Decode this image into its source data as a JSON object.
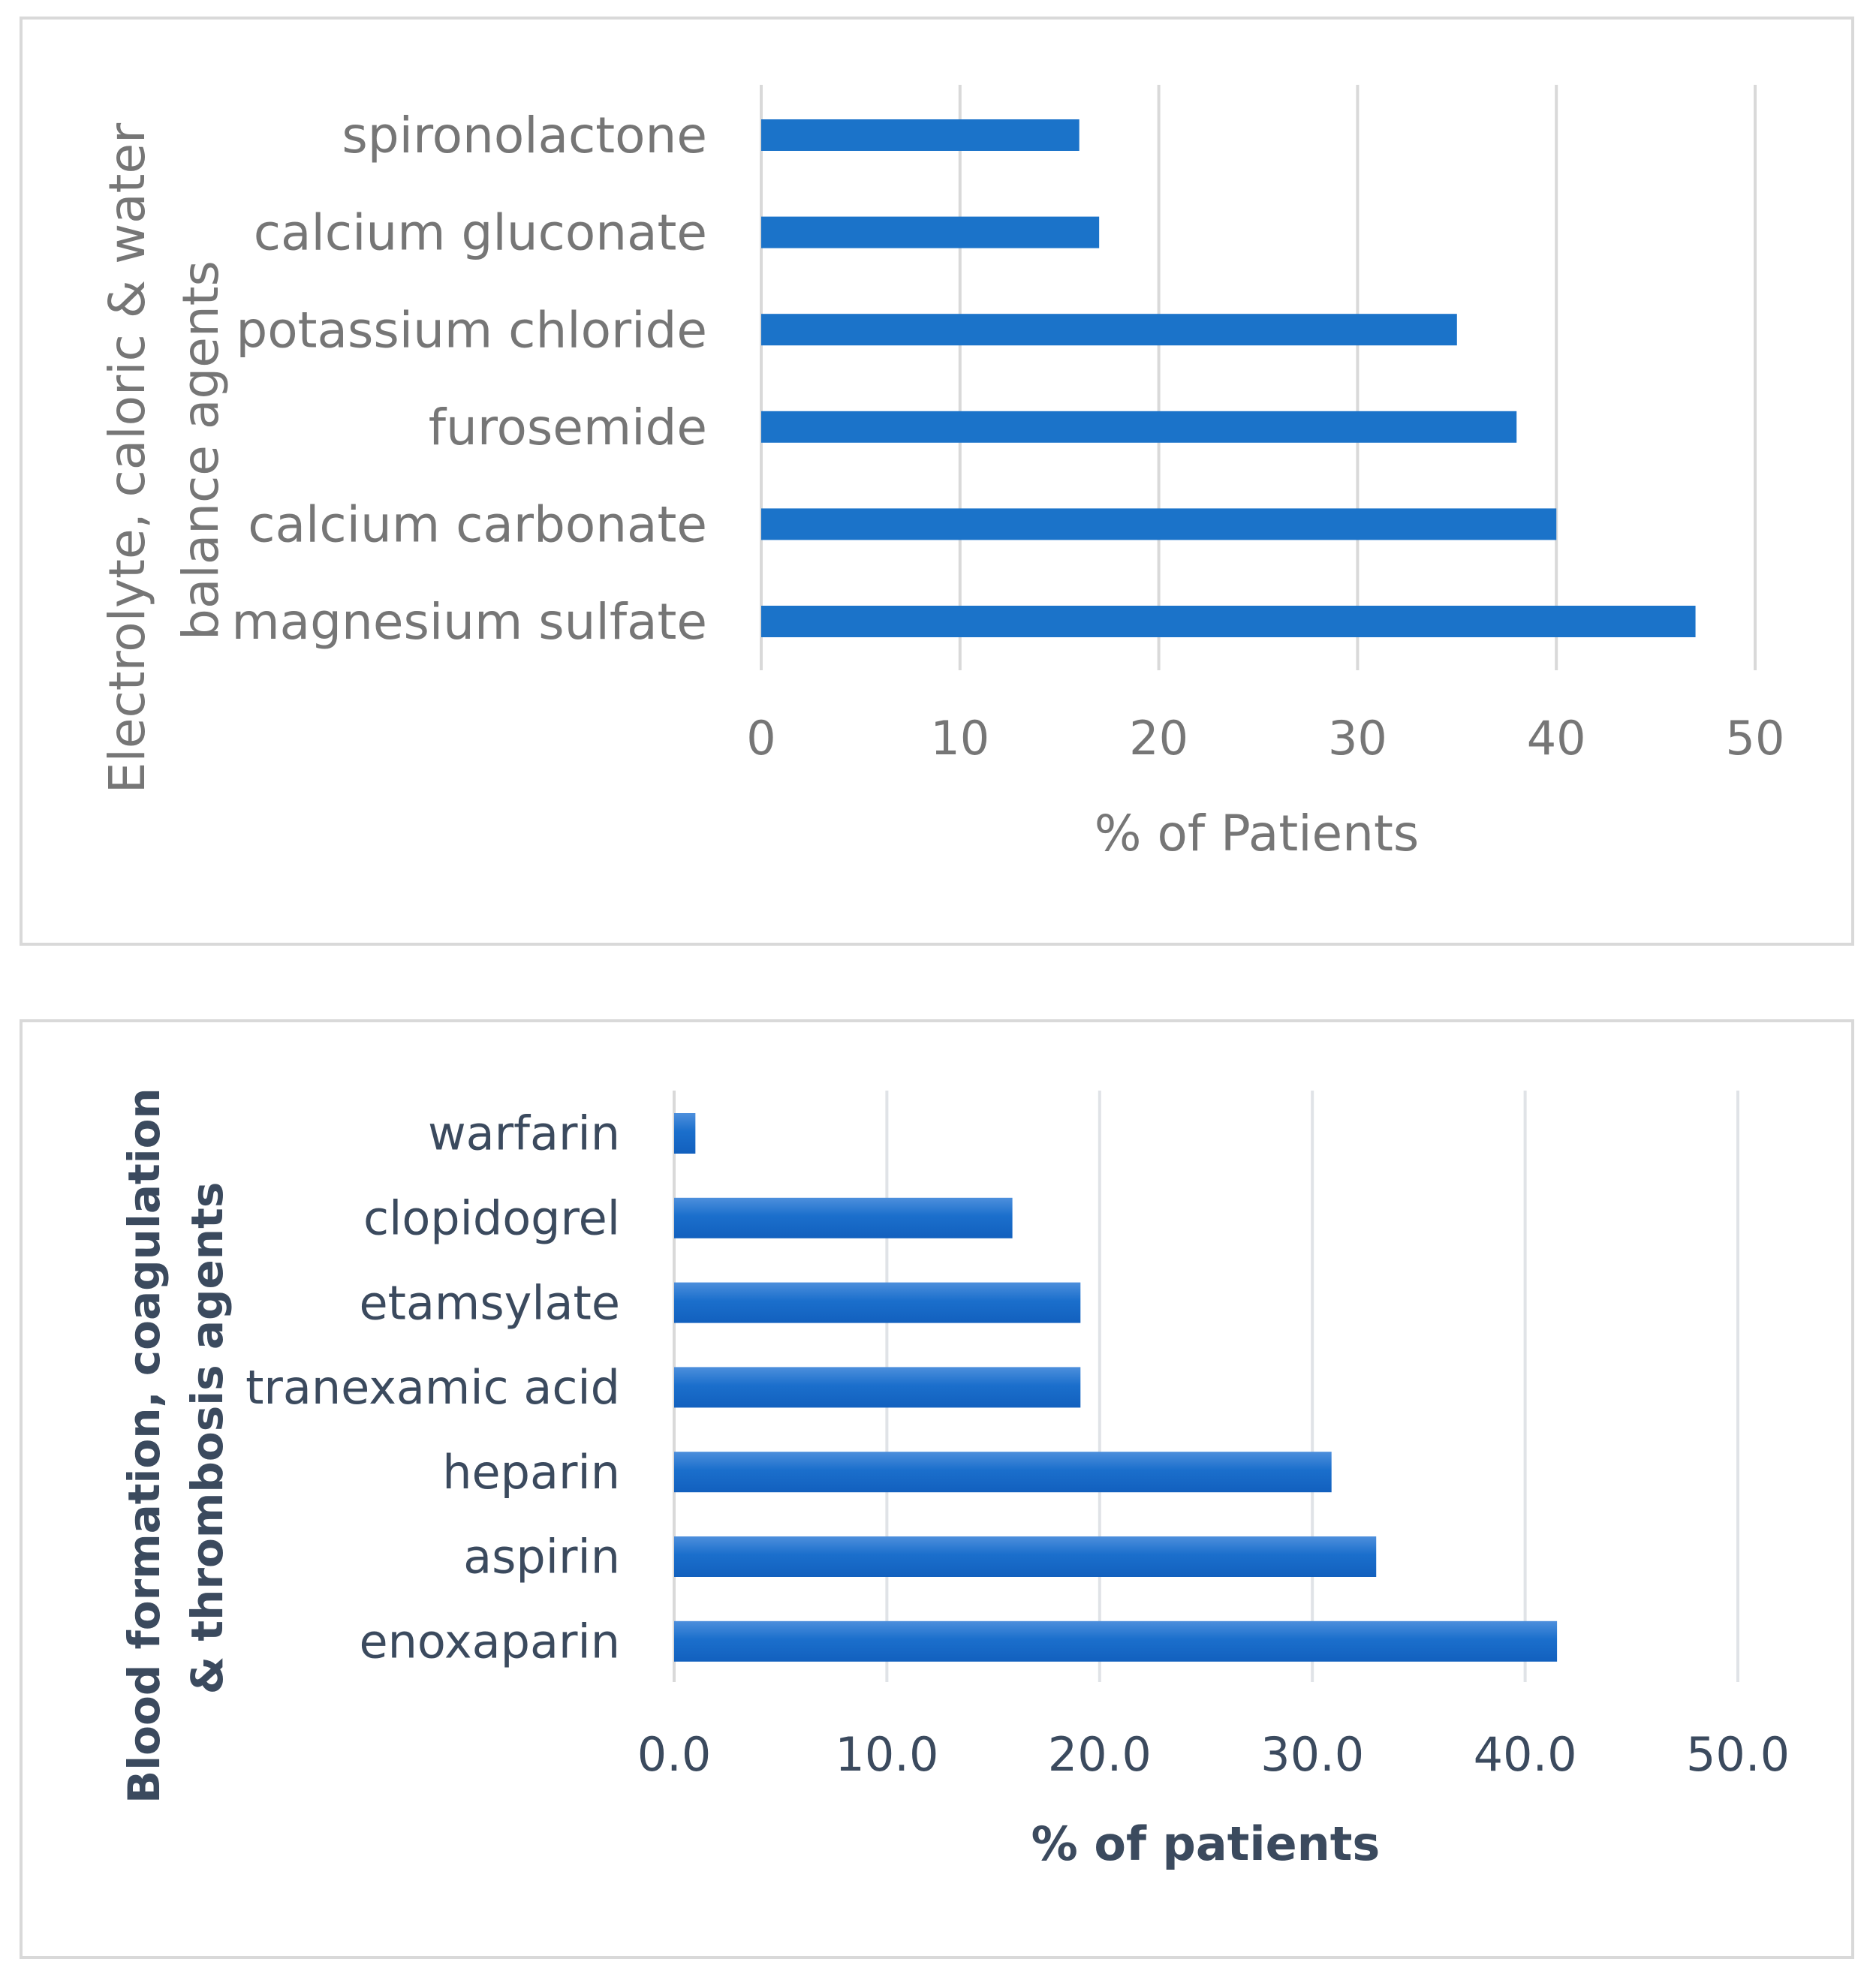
{
  "chart_data": [
    {
      "type": "bar",
      "orientation": "horizontal",
      "title": "",
      "ylabel": "Electrolyte, caloric & water balance agents",
      "ylabel_lines": [
        "Electrolyte, caloric & water",
        "balance agents"
      ],
      "xlabel": "% of Patients",
      "categories": [
        "spironolactone",
        "calcium gluconate",
        "potassium chloride",
        "furosemide",
        "calcium carbonate",
        "magnesium sulfate"
      ],
      "values": [
        16,
        17,
        35,
        38,
        40,
        47
      ],
      "xlim": [
        0,
        50
      ],
      "xticks": [
        0,
        10,
        20,
        30,
        40,
        50
      ],
      "tick_labels": [
        "0",
        "10",
        "20",
        "30",
        "40",
        "50"
      ],
      "grid": true,
      "bar_color": "#1B73C9",
      "text_color": "#767676"
    },
    {
      "type": "bar",
      "orientation": "horizontal",
      "title": "",
      "ylabel": "Blood formation, coagulation & thrombosis agents",
      "ylabel_lines": [
        "Blood formation, coagulation",
        "& thrombosis agents"
      ],
      "xlabel": "% of patients",
      "categories": [
        "warfarin",
        "clopidogrel",
        "etamsylate",
        "tranexamic acid",
        "heparin",
        "aspirin",
        "enoxaparin"
      ],
      "values": [
        1.0,
        15.9,
        19.1,
        19.1,
        30.9,
        33.0,
        41.5
      ],
      "xlim": [
        0,
        50
      ],
      "xticks": [
        0,
        10,
        20,
        30,
        40,
        50
      ],
      "tick_labels": [
        "0.0",
        "10.0",
        "20.0",
        "30.0",
        "40.0",
        "50.0"
      ],
      "grid": true,
      "bar_color": "#1567C7",
      "text_color": "#3B4A5E"
    }
  ]
}
